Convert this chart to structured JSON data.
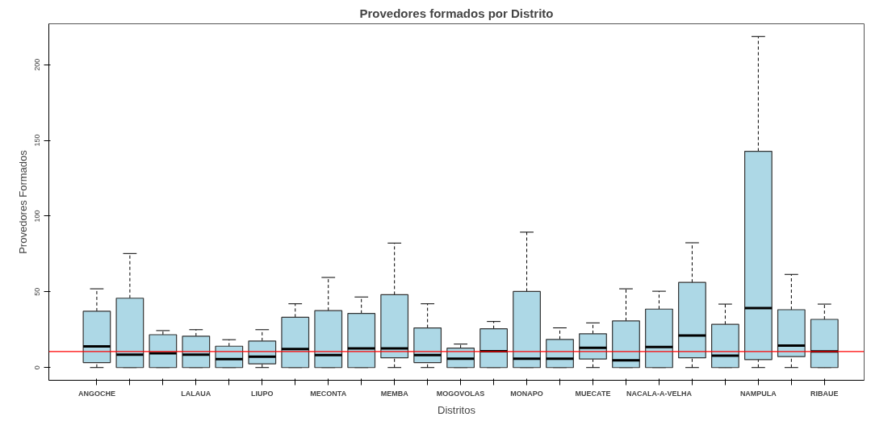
{
  "chart_data": {
    "type": "box",
    "title": "Provedores formados por Distrito",
    "xlabel": "Distritos",
    "ylabel": "Provedores Formados",
    "categories": [
      "ANGOCHE",
      null,
      null,
      "LALAUA",
      null,
      "LIUPO",
      null,
      "MECONTA",
      null,
      "MEMBA",
      null,
      "MOGOVOLAS",
      null,
      "MONAPO",
      null,
      "MUECATE",
      null,
      "NACALA-A-VELHA",
      null,
      null,
      "NAMPULA",
      null,
      "RIBAUE"
    ],
    "color": "#add8e6",
    "boxes": [
      {
        "low": 0,
        "q1": 3.3,
        "median": 14,
        "q3": 37.2,
        "high": 52
      },
      {
        "low": 0,
        "q1": 0,
        "median": 8.5,
        "q3": 45.8,
        "high": 75.3
      },
      {
        "low": 0,
        "q1": 0,
        "median": 9.5,
        "q3": 21.7,
        "high": 24.4
      },
      {
        "low": 0,
        "q1": 0,
        "median": 8.5,
        "q3": 20.7,
        "high": 25
      },
      {
        "low": 0,
        "q1": 0,
        "median": 5.6,
        "q3": 14.1,
        "high": 18.4
      },
      {
        "low": 0,
        "q1": 2.5,
        "median": 7.2,
        "q3": 17.5,
        "high": 25
      },
      {
        "low": 0,
        "q1": 0,
        "median": 12.2,
        "q3": 33.2,
        "high": 42.1
      },
      {
        "low": 0,
        "q1": 0,
        "median": 8.3,
        "q3": 37.6,
        "high": 59.5
      },
      {
        "low": 0,
        "q1": 0,
        "median": 12.6,
        "q3": 35.7,
        "high": 46.6
      },
      {
        "low": 0,
        "q1": 6.4,
        "median": 12.6,
        "q3": 48.1,
        "high": 82.2
      },
      {
        "low": 0,
        "q1": 3.3,
        "median": 8.3,
        "q3": 26.2,
        "high": 42.1
      },
      {
        "low": 0,
        "q1": 0,
        "median": 5.8,
        "q3": 12.8,
        "high": 15.5
      },
      {
        "low": 0,
        "q1": 0,
        "median": 10.8,
        "q3": 25.6,
        "high": 30.4
      },
      {
        "low": 0,
        "q1": 0,
        "median": 5.8,
        "q3": 50.2,
        "high": 89.4
      },
      {
        "low": 0,
        "q1": 0,
        "median": 5.8,
        "q3": 18.6,
        "high": 26.2
      },
      {
        "low": 0,
        "q1": 5.6,
        "median": 13,
        "q3": 22.3,
        "high": 29.5
      },
      {
        "low": 0,
        "q1": 0,
        "median": 4.8,
        "q3": 30.8,
        "high": 52
      },
      {
        "low": 0,
        "q1": 0,
        "median": 13.6,
        "q3": 38.6,
        "high": 50.4
      },
      {
        "low": 0,
        "q1": 6.4,
        "median": 21.1,
        "q3": 56.2,
        "high": 82.4
      },
      {
        "low": 0,
        "q1": 0,
        "median": 7.9,
        "q3": 28.5,
        "high": 41.9
      },
      {
        "low": 0,
        "q1": 5.2,
        "median": 39.2,
        "q3": 142.8,
        "high": 218.6
      },
      {
        "low": 0,
        "q1": 7.2,
        "median": 14.5,
        "q3": 38.2,
        "high": 61.5
      },
      {
        "low": 0,
        "q1": 0,
        "median": 10.6,
        "q3": 31.8,
        "high": 41.9
      }
    ],
    "ylim": [
      -8.4,
      227
    ],
    "yticks": [
      0,
      50,
      100,
      150,
      200
    ],
    "ref_lines": [
      {
        "axis": "y",
        "value": 10.6,
        "color": "#ff0000"
      }
    ]
  }
}
